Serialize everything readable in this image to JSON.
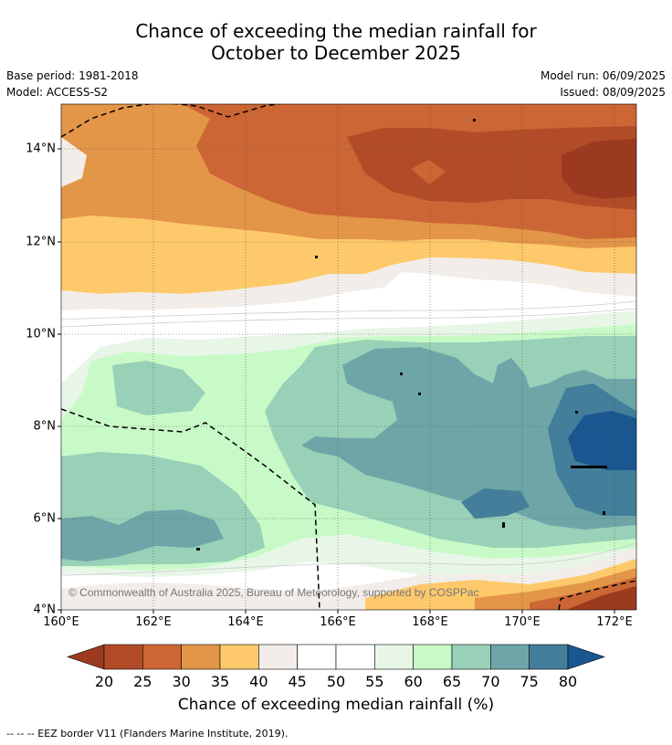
{
  "title_line1": "Chance of exceeding the median rainfall for",
  "title_line2": "October to December 2025",
  "base_period": "Base period: 1981-2018",
  "model": "Model: ACCESS-S2",
  "model_run": "Model run: 06/09/2025",
  "issued": "Issued: 08/09/2025",
  "copyright": "© Commonwealth of Australia 2025, Bureau of Meteorology, supported by COSPPac",
  "lat_labels": [
    "14°N",
    "12°N",
    "10°N",
    "8°N",
    "6°N",
    "4°N"
  ],
  "lon_labels": [
    "160°E",
    "162°E",
    "164°E",
    "166°E",
    "168°E",
    "170°E",
    "172°E"
  ],
  "colorbar": {
    "ticks": [
      "20",
      "25",
      "30",
      "35",
      "40",
      "45",
      "50",
      "55",
      "60",
      "65",
      "70",
      "75",
      "80"
    ],
    "colors": [
      "#9b3a1f",
      "#b24c28",
      "#cc6634",
      "#e39548",
      "#fdc96b",
      "#f2ede8",
      "#ffffff",
      "#ffffff",
      "#e8f6e8",
      "#c8fac8",
      "#99d0b8",
      "#6ea6a8",
      "#437e9a",
      "#1a5790"
    ],
    "title": "Chance of exceeding median rainfall (%)"
  },
  "footer": "--  --  -- EEZ border V11 (Flanders Marine Institute, 2019)."
}
